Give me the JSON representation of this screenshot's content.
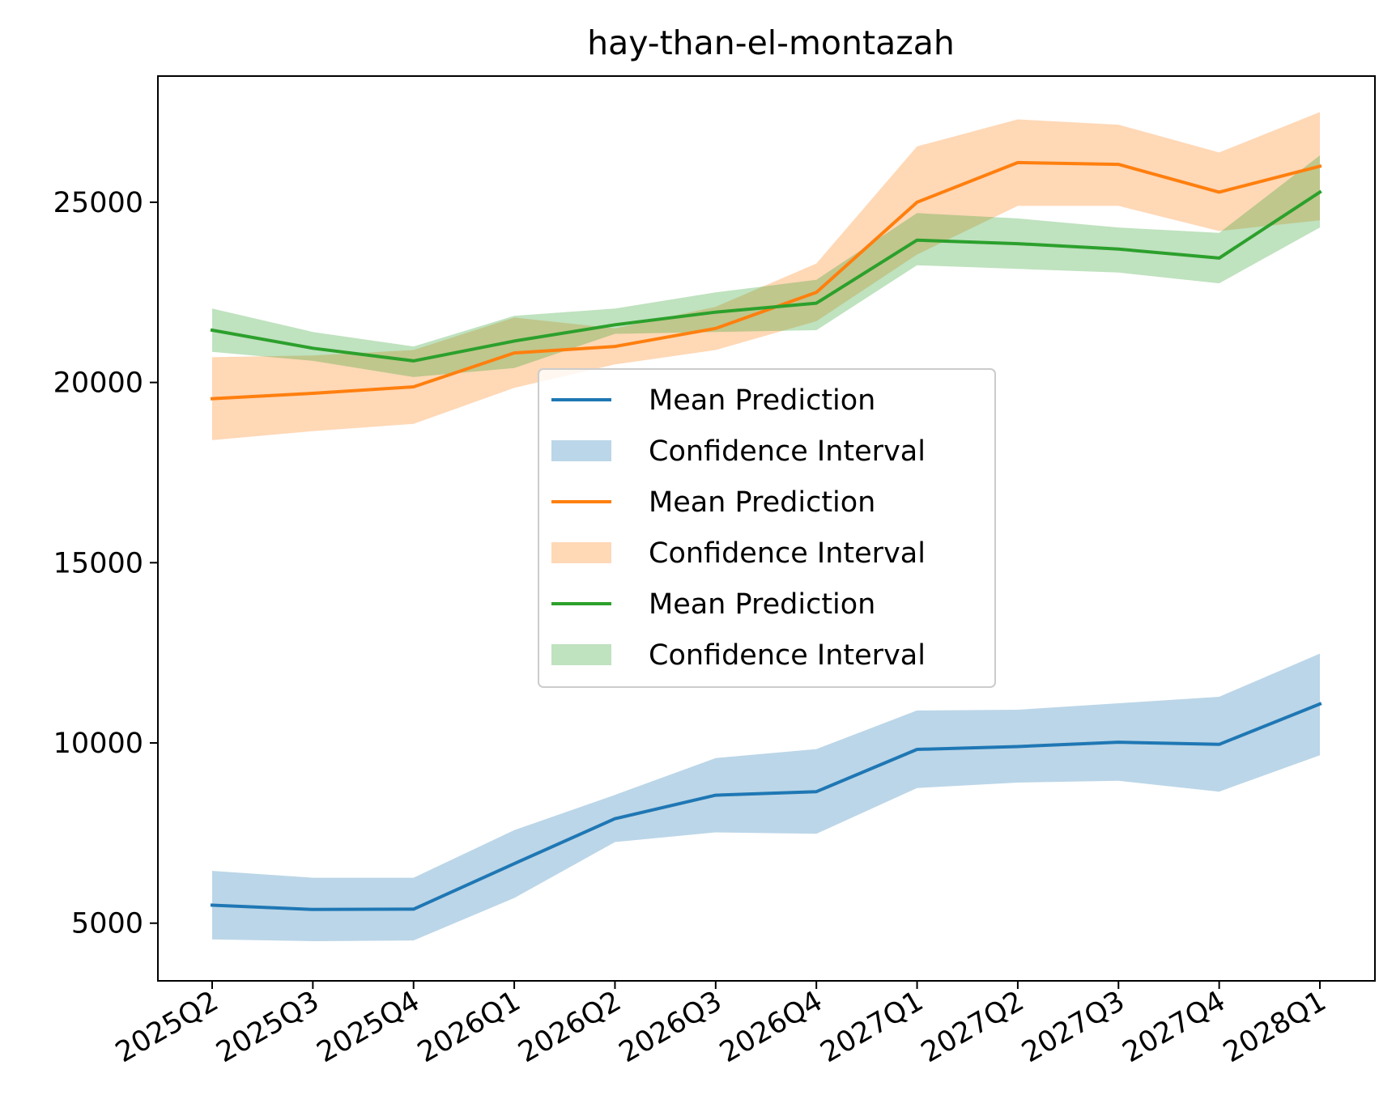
{
  "chart_data": {
    "type": "line",
    "title": "hay-than-el-montazah",
    "xlabel": "",
    "ylabel": "",
    "categories": [
      "2025Q2",
      "2025Q3",
      "2025Q4",
      "2026Q1",
      "2026Q2",
      "2026Q3",
      "2026Q4",
      "2027Q1",
      "2027Q2",
      "2027Q3",
      "2027Q4",
      "2028Q1"
    ],
    "ylim": [
      3400,
      28500
    ],
    "yticks": [
      5000,
      10000,
      15000,
      20000,
      25000
    ],
    "grid": false,
    "legend_position": "center",
    "series": [
      {
        "name": "Mean Prediction",
        "band_name": "Confidence Interval",
        "color": "#1f77b4",
        "values": [
          5500,
          5380,
          5390,
          6650,
          7900,
          8550,
          8650,
          9820,
          9900,
          10020,
          9960,
          11080
        ],
        "lower": [
          4550,
          4500,
          4520,
          5700,
          7250,
          7520,
          7480,
          8750,
          8900,
          8950,
          8650,
          9660
        ],
        "upper": [
          6450,
          6260,
          6260,
          7580,
          8560,
          9580,
          9830,
          10900,
          10920,
          11100,
          11280,
          12480
        ]
      },
      {
        "name": "Mean Prediction",
        "band_name": "Confidence Interval",
        "color": "#ff7f0e",
        "values": [
          19550,
          19700,
          19880,
          20820,
          21000,
          21500,
          22500,
          25000,
          26100,
          26050,
          25280,
          26000
        ],
        "lower": [
          18400,
          18650,
          18850,
          19850,
          20500,
          20900,
          21700,
          23550,
          24900,
          24900,
          24200,
          24500
        ],
        "upper": [
          20700,
          20750,
          20900,
          21800,
          21500,
          22100,
          23300,
          26550,
          27300,
          27150,
          26380,
          27500
        ]
      },
      {
        "name": "Mean Prediction",
        "band_name": "Confidence Interval",
        "color": "#2ca02c",
        "values": [
          21450,
          20950,
          20600,
          21150,
          21600,
          21950,
          22200,
          23950,
          23850,
          23700,
          23450,
          25280
        ],
        "lower": [
          20850,
          20600,
          20150,
          20400,
          21350,
          21400,
          21450,
          23250,
          23150,
          23050,
          22750,
          24300
        ],
        "upper": [
          22050,
          21400,
          21000,
          21850,
          22050,
          22500,
          22850,
          24700,
          24550,
          24300,
          24150,
          26300
        ]
      }
    ]
  }
}
